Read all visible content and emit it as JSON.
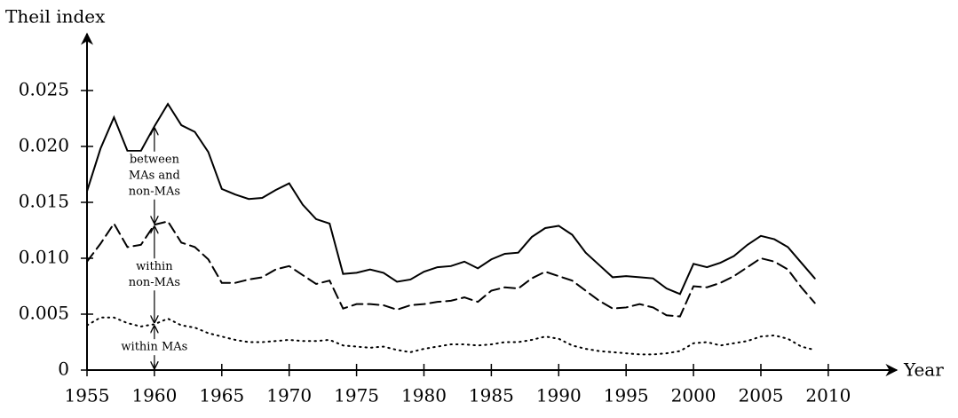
{
  "chart_data": {
    "type": "line",
    "y_label": "Theil index",
    "x_label": "Year",
    "x": [
      1955,
      1956,
      1957,
      1958,
      1959,
      1960,
      1961,
      1962,
      1963,
      1964,
      1965,
      1966,
      1967,
      1968,
      1969,
      1970,
      1971,
      1972,
      1973,
      1974,
      1975,
      1976,
      1977,
      1978,
      1979,
      1980,
      1981,
      1982,
      1983,
      1984,
      1985,
      1986,
      1987,
      1988,
      1989,
      1990,
      1991,
      1992,
      1993,
      1994,
      1995,
      1996,
      1997,
      1998,
      1999,
      2000,
      2001,
      2002,
      2003,
      2004,
      2005,
      2006,
      2007,
      2008,
      2009
    ],
    "series": [
      {
        "color": "#000000",
        "style": "solid",
        "values": [
          0.016,
          0.0198,
          0.0226,
          0.0196,
          0.0196,
          0.0218,
          0.0238,
          0.0219,
          0.0213,
          0.0195,
          0.0162,
          0.0157,
          0.0153,
          0.0154,
          0.0161,
          0.0167,
          0.0148,
          0.0135,
          0.0131,
          0.0086,
          0.0087,
          0.009,
          0.0087,
          0.0079,
          0.0081,
          0.0088,
          0.0092,
          0.0093,
          0.0097,
          0.0091,
          0.0099,
          0.0104,
          0.0105,
          0.0119,
          0.0127,
          0.0129,
          0.0121,
          0.0105,
          0.0094,
          0.0083,
          0.0084,
          0.0083,
          0.0082,
          0.0073,
          0.0068,
          0.0095,
          0.0092,
          0.0096,
          0.0102,
          0.0112,
          0.012,
          0.0117,
          0.011,
          0.0096,
          0.0082
        ]
      },
      {
        "color": "#000000",
        "style": "dashed",
        "values": [
          0.0097,
          0.0113,
          0.0131,
          0.011,
          0.0112,
          0.013,
          0.0133,
          0.0114,
          0.011,
          0.0099,
          0.0078,
          0.0078,
          0.0081,
          0.0083,
          0.009,
          0.0093,
          0.0085,
          0.0077,
          0.008,
          0.0055,
          0.0059,
          0.0059,
          0.0058,
          0.0054,
          0.0058,
          0.0059,
          0.0061,
          0.0062,
          0.0065,
          0.0061,
          0.0071,
          0.0074,
          0.0073,
          0.0082,
          0.0088,
          0.0084,
          0.008,
          0.0071,
          0.0062,
          0.0055,
          0.0056,
          0.0059,
          0.0056,
          0.0049,
          0.0048,
          0.0075,
          0.0074,
          0.0078,
          0.0084,
          0.0092,
          0.01,
          0.0097,
          0.009,
          0.0074,
          0.006
        ]
      },
      {
        "color": "#000000",
        "style": "dotted",
        "values": [
          0.004,
          0.0047,
          0.0047,
          0.0042,
          0.0039,
          0.0041,
          0.0046,
          0.004,
          0.0038,
          0.0033,
          0.003,
          0.0027,
          0.0025,
          0.0025,
          0.0026,
          0.0027,
          0.0026,
          0.0026,
          0.0027,
          0.0022,
          0.0021,
          0.002,
          0.0021,
          0.0018,
          0.0016,
          0.0019,
          0.0021,
          0.0023,
          0.0023,
          0.0022,
          0.0023,
          0.0025,
          0.0025,
          0.0027,
          0.003,
          0.0028,
          0.0022,
          0.0019,
          0.0017,
          0.0016,
          0.0015,
          0.0014,
          0.0014,
          0.0015,
          0.0017,
          0.0024,
          0.0025,
          0.0022,
          0.0024,
          0.0026,
          0.003,
          0.0031,
          0.0028,
          0.0021,
          0.0018
        ]
      }
    ],
    "annotations": [
      [
        "between",
        "MAs and",
        "non-MAs"
      ],
      [
        "within",
        "non-MAs"
      ],
      [
        "within MAs"
      ]
    ],
    "xlim": [
      1955,
      2014
    ],
    "xticks": [
      1955,
      1960,
      1965,
      1970,
      1975,
      1980,
      1985,
      1990,
      1995,
      2000,
      2005,
      2010
    ],
    "ylim": [
      0,
      0.029
    ],
    "yticks": [
      0,
      0.005,
      {
        "value": 0.01,
        "label": "0.010"
      },
      0.015,
      {
        "value": 0.02,
        "label": "0.020"
      },
      0.025
    ],
    "grid": false
  }
}
